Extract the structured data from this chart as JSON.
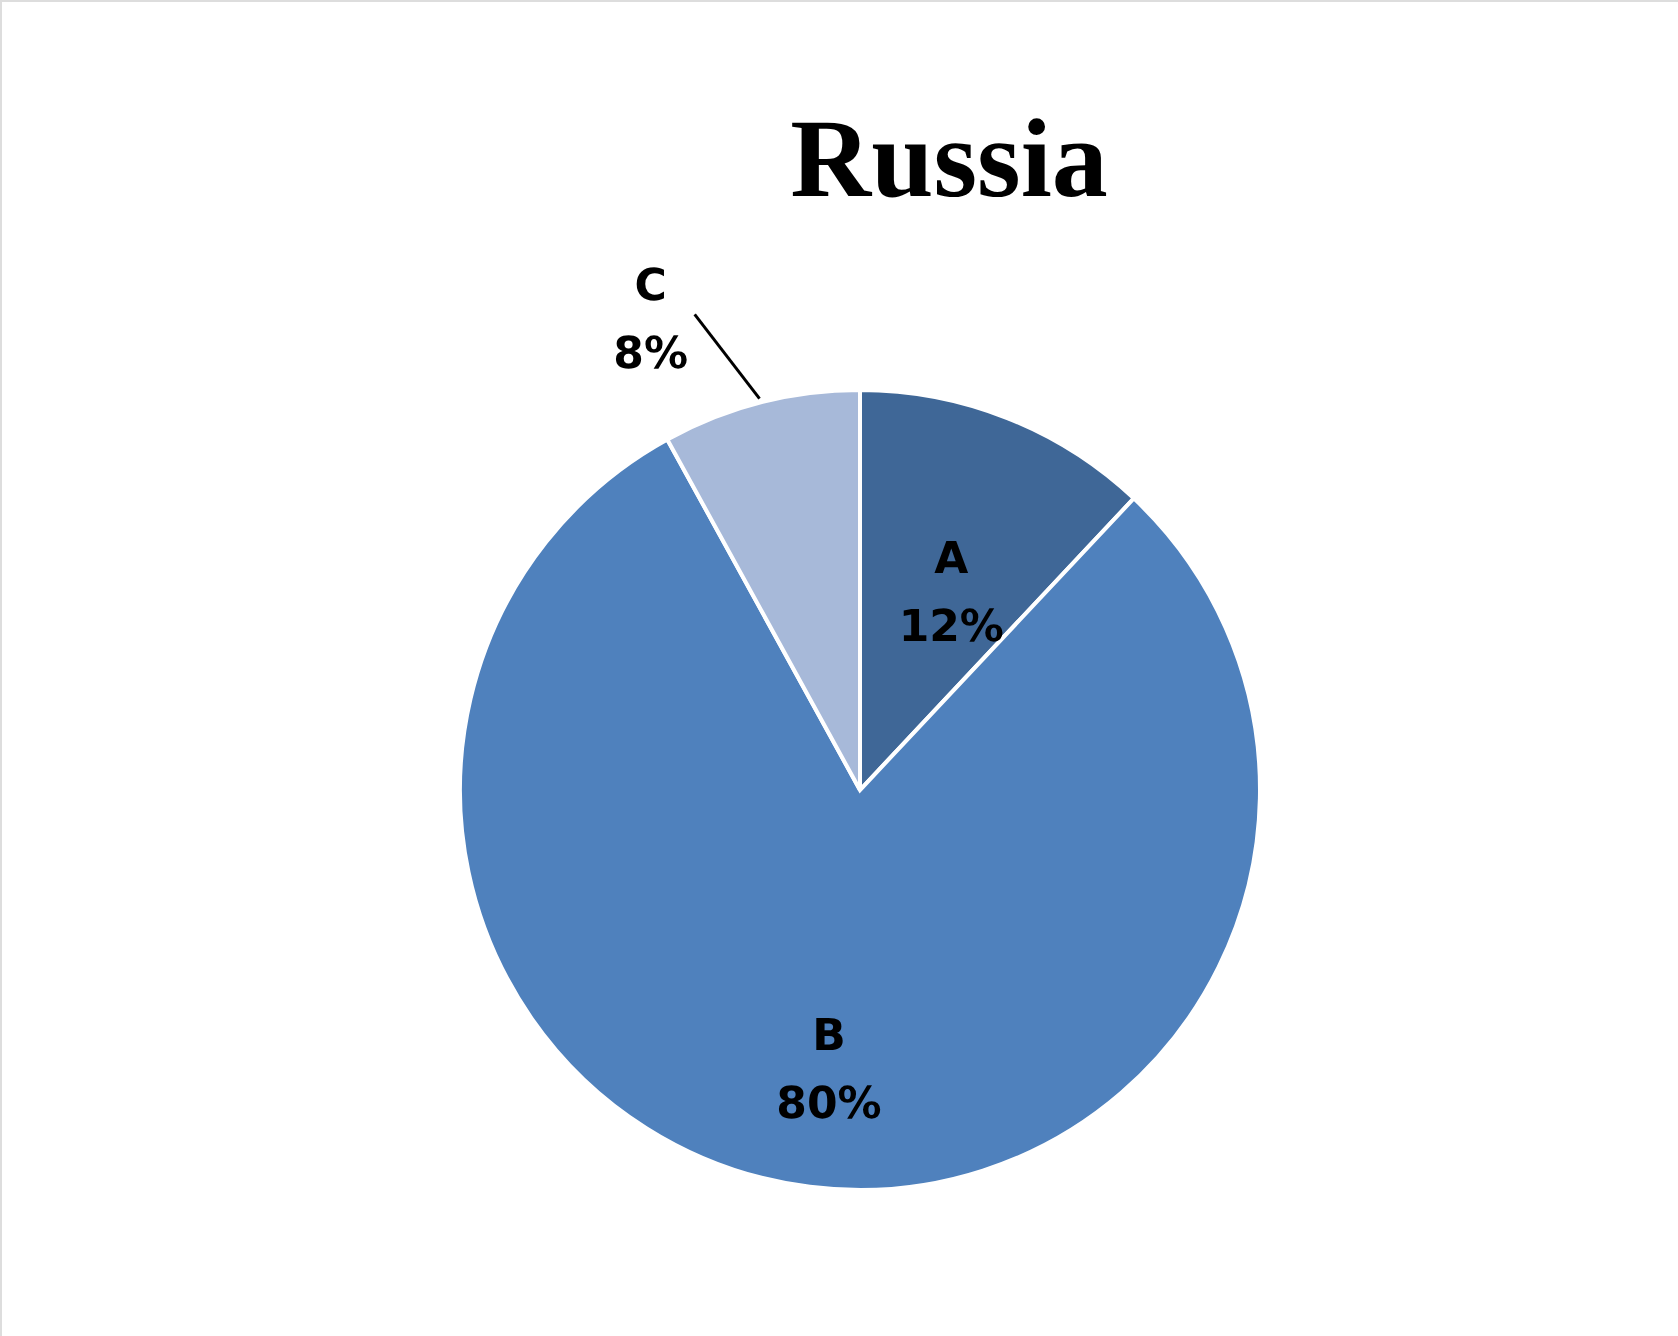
{
  "chart_data": {
    "type": "pie",
    "title": "Russia",
    "categories": [
      "A",
      "B",
      "C"
    ],
    "values": [
      12,
      80,
      8
    ],
    "colors": [
      "#3f6797",
      "#4f81bd",
      "#a7b9d9"
    ],
    "value_labels": [
      "12%",
      "80%",
      "8%"
    ],
    "data_labels": true
  }
}
